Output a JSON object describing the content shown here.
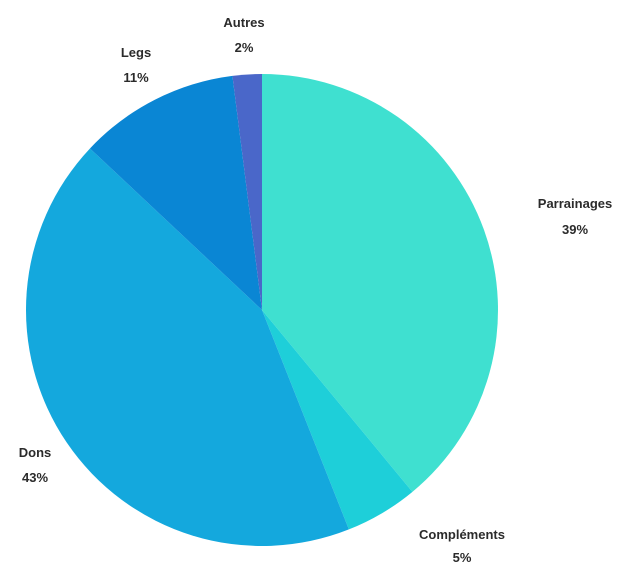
{
  "chart_data": {
    "type": "pie",
    "categories": [
      "Parrainages",
      "Compléments",
      "Dons",
      "Legs",
      "Autres"
    ],
    "values": [
      39,
      5,
      43,
      11,
      2
    ],
    "value_labels": [
      "39%",
      "5%",
      "43%",
      "11%",
      "2%"
    ],
    "colors": [
      "#3fe0d0",
      "#1ecfd9",
      "#14a8dd",
      "#0a86d4",
      "#4a67c9"
    ],
    "start_angle_deg": 0,
    "direction": "clockwise",
    "legend": "none"
  }
}
